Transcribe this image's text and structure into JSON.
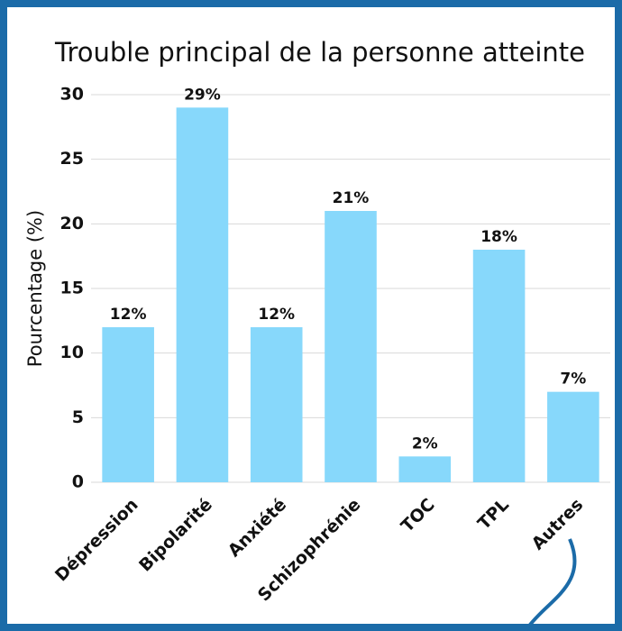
{
  "chart_data": {
    "type": "bar",
    "title": "Trouble principal de la personne atteinte",
    "y_label": "Pourcentage (%)",
    "categories": [
      "Dépression",
      "Bipolarité",
      "Anxiété",
      "Schizophrénie",
      "TOC",
      "TPL",
      "Autres"
    ],
    "values": [
      12,
      29,
      12,
      21,
      2,
      18,
      7
    ],
    "value_labels": [
      "12%",
      "29%",
      "12%",
      "21%",
      "2%",
      "18%",
      "7%"
    ],
    "color": "#87d8fb",
    "ylim": [
      0,
      30
    ],
    "yticks": [
      0,
      5,
      10,
      15,
      20,
      25,
      30
    ],
    "grid": true
  }
}
